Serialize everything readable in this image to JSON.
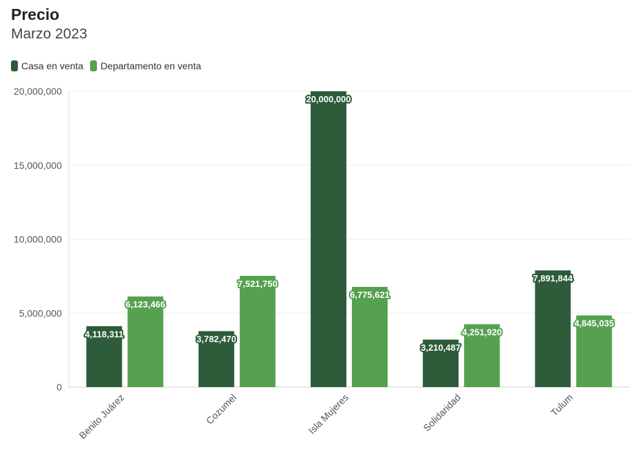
{
  "chart_data": {
    "type": "bar",
    "title": "Precio",
    "subtitle": "Marzo 2023",
    "categories": [
      "Benito Juárez",
      "Cozumel",
      "Isla Mujeres",
      "Solidaridad",
      "Tulum"
    ],
    "series": [
      {
        "name": "Casa en venta",
        "color": "#2e5b3a",
        "values": [
          4118311,
          3782470,
          20000000,
          3210487,
          7891844
        ]
      },
      {
        "name": "Departamento en venta",
        "color": "#55a150",
        "values": [
          6123466,
          7521750,
          6775621,
          4251920,
          4845035
        ]
      }
    ],
    "ylim": [
      0,
      20000000
    ],
    "yticks": [
      0,
      5000000,
      10000000,
      15000000,
      20000000
    ],
    "ytick_labels": [
      "0",
      "5,000,000",
      "10,000,000",
      "15,000,000",
      "20,000,000"
    ],
    "grid": true,
    "legend_position": "top-left"
  }
}
